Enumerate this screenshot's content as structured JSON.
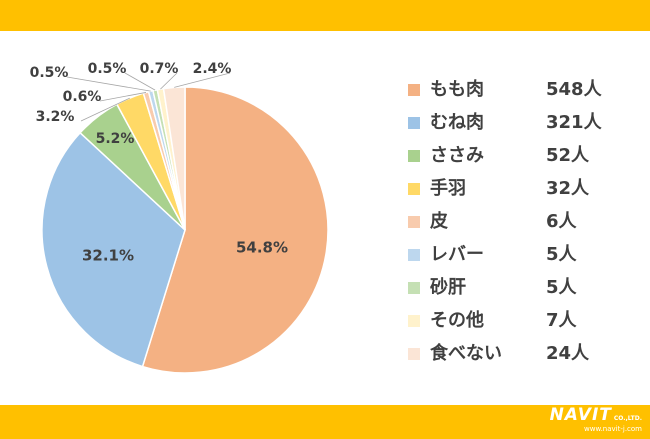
{
  "chart_data": {
    "type": "pie",
    "categories": [
      "もも肉",
      "むね肉",
      "ささみ",
      "手羽",
      "皮",
      "レバー",
      "砂肝",
      "その他",
      "食べない"
    ],
    "values": [
      548,
      321,
      52,
      32,
      6,
      5,
      5,
      7,
      24
    ],
    "value_labels": [
      "548人",
      "321人",
      "52人",
      "32人",
      "6人",
      "5人",
      "5人",
      "7人",
      "24人"
    ],
    "percent_labels": [
      "54.8%",
      "32.1%",
      "5.2%",
      "3.2%",
      "0.6%",
      "0.5%",
      "0.5%",
      "0.7%",
      "2.4%"
    ],
    "colors": [
      "#f4b183",
      "#9dc3e6",
      "#a9d18e",
      "#ffd966",
      "#f8cbad",
      "#bdd7ee",
      "#c5e0b4",
      "#fff2cc",
      "#fbe5d6"
    ],
    "start_angle_deg": 0,
    "direction": "clockwise",
    "legend_position": "right"
  },
  "footer": {
    "brand": "NAVIT",
    "suffix": "CO.,LTD.",
    "url": "www.navit-j.com"
  },
  "colors": {
    "band": "#ffc000",
    "label_text": "#404040"
  }
}
